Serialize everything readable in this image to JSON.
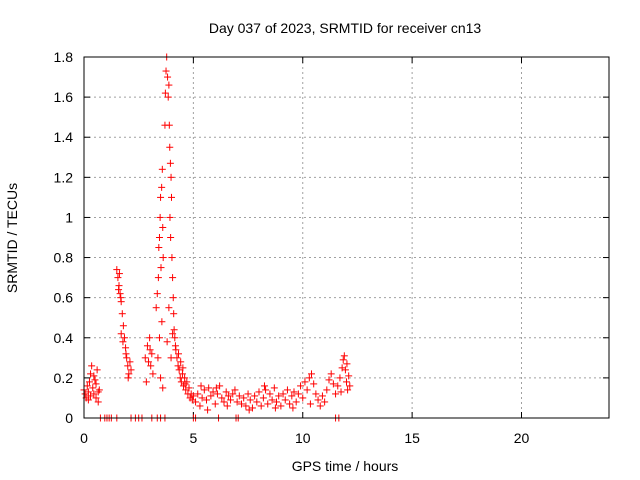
{
  "chart_data": {
    "type": "scatter",
    "title": "Day 037 of 2023, SRMTID for receiver cn13",
    "xlabel": "GPS time / hours",
    "ylabel": "SRMTID / TECUs",
    "xlim": [
      0,
      24
    ],
    "ylim": [
      0,
      1.8
    ],
    "xticks": [
      0,
      5,
      10,
      15,
      20
    ],
    "xtick_labels": [
      "0",
      "5",
      "10",
      "15",
      "20"
    ],
    "yticks": [
      0,
      0.2,
      0.4,
      0.6,
      0.8,
      1.0,
      1.2,
      1.4,
      1.6,
      1.8
    ],
    "ytick_labels": [
      "0",
      "0.2",
      "0.4",
      "0.6",
      "0.8",
      "1",
      "1.2",
      "1.4",
      "1.6",
      "1.8"
    ],
    "grid": true,
    "marker": "+",
    "marker_color": "#ff0000",
    "series": [
      {
        "name": "cn13",
        "points": [
          [
            0.0,
            0.14
          ],
          [
            0.05,
            0.12
          ],
          [
            0.1,
            0.1
          ],
          [
            0.15,
            0.16
          ],
          [
            0.2,
            0.13
          ],
          [
            0.25,
            0.18
          ],
          [
            0.3,
            0.22
          ],
          [
            0.35,
            0.26
          ],
          [
            0.4,
            0.15
          ],
          [
            0.45,
            0.12
          ],
          [
            0.5,
            0.19
          ],
          [
            0.55,
            0.1
          ],
          [
            0.6,
            0.24
          ],
          [
            0.65,
            0.08
          ],
          [
            0.7,
            0.14
          ],
          [
            0.2,
            0.09
          ],
          [
            0.3,
            0.11
          ],
          [
            0.45,
            0.21
          ],
          [
            0.55,
            0.17
          ],
          [
            0.65,
            0.13
          ],
          [
            1.5,
            0.74
          ],
          [
            1.55,
            0.7
          ],
          [
            1.6,
            0.66
          ],
          [
            1.65,
            0.62
          ],
          [
            1.7,
            0.58
          ],
          [
            1.75,
            0.52
          ],
          [
            1.8,
            0.46
          ],
          [
            1.62,
            0.72
          ],
          [
            1.68,
            0.6
          ],
          [
            1.58,
            0.64
          ],
          [
            1.85,
            0.4
          ],
          [
            1.9,
            0.35
          ],
          [
            1.95,
            0.3
          ],
          [
            2.0,
            0.26
          ],
          [
            2.05,
            0.22
          ],
          [
            2.1,
            0.28
          ],
          [
            2.15,
            0.24
          ],
          [
            1.92,
            0.32
          ],
          [
            2.02,
            0.2
          ],
          [
            1.7,
            0.42
          ],
          [
            1.78,
            0.38
          ],
          [
            2.8,
            0.3
          ],
          [
            2.9,
            0.36
          ],
          [
            3.0,
            0.4
          ],
          [
            3.05,
            0.26
          ],
          [
            3.1,
            0.32
          ],
          [
            3.15,
            0.22
          ],
          [
            2.85,
            0.18
          ],
          [
            2.95,
            0.28
          ],
          [
            3.02,
            0.34
          ],
          [
            3.3,
            0.55
          ],
          [
            3.35,
            0.62
          ],
          [
            3.4,
            0.7
          ],
          [
            3.42,
            0.85
          ],
          [
            3.45,
            0.9
          ],
          [
            3.48,
            1.0
          ],
          [
            3.5,
            1.1
          ],
          [
            3.55,
            1.15
          ],
          [
            3.58,
            1.24
          ],
          [
            3.6,
            0.95
          ],
          [
            3.62,
            0.8
          ],
          [
            3.52,
            0.75
          ],
          [
            3.56,
            0.48
          ],
          [
            3.45,
            0.4
          ],
          [
            3.38,
            0.3
          ],
          [
            3.5,
            0.2
          ],
          [
            3.6,
            0.15
          ],
          [
            3.7,
            1.46
          ],
          [
            3.72,
            1.62
          ],
          [
            3.75,
            1.73
          ],
          [
            3.78,
            1.8
          ],
          [
            3.82,
            1.7
          ],
          [
            3.85,
            1.6
          ],
          [
            3.88,
            1.66
          ],
          [
            3.9,
            1.46
          ],
          [
            3.92,
            1.35
          ],
          [
            3.95,
            1.27
          ],
          [
            3.98,
            1.2
          ],
          [
            4.0,
            1.1
          ],
          [
            3.93,
            1.0
          ],
          [
            3.96,
            0.9
          ],
          [
            4.02,
            0.8
          ],
          [
            4.05,
            0.7
          ],
          [
            4.08,
            0.6
          ],
          [
            4.1,
            0.52
          ],
          [
            4.12,
            0.44
          ],
          [
            4.15,
            0.4
          ],
          [
            4.18,
            0.36
          ],
          [
            4.2,
            0.34
          ],
          [
            4.05,
            0.42
          ],
          [
            3.88,
            0.55
          ],
          [
            3.8,
            0.38
          ],
          [
            3.98,
            0.3
          ],
          [
            4.25,
            0.3
          ],
          [
            4.3,
            0.26
          ],
          [
            4.35,
            0.24
          ],
          [
            4.4,
            0.2
          ],
          [
            4.45,
            0.18
          ],
          [
            4.5,
            0.22
          ],
          [
            4.55,
            0.16
          ],
          [
            4.6,
            0.2
          ],
          [
            4.65,
            0.14
          ],
          [
            4.7,
            0.18
          ],
          [
            4.75,
            0.12
          ],
          [
            4.8,
            0.15
          ],
          [
            4.85,
            0.1
          ],
          [
            4.9,
            0.12
          ],
          [
            4.95,
            0.09
          ],
          [
            5.0,
            0.11
          ],
          [
            4.32,
            0.32
          ],
          [
            4.42,
            0.28
          ],
          [
            4.52,
            0.25
          ],
          [
            4.62,
            0.17
          ],
          [
            5.1,
            0.08
          ],
          [
            5.2,
            0.12
          ],
          [
            5.3,
            0.06
          ],
          [
            5.4,
            0.1
          ],
          [
            5.5,
            0.14
          ],
          [
            5.6,
            0.09
          ],
          [
            5.7,
            0.15
          ],
          [
            5.8,
            0.11
          ],
          [
            5.9,
            0.13
          ],
          [
            6.0,
            0.07
          ],
          [
            6.1,
            0.12
          ],
          [
            6.2,
            0.16
          ],
          [
            6.3,
            0.1
          ],
          [
            6.4,
            0.08
          ],
          [
            6.5,
            0.13
          ],
          [
            6.6,
            0.11
          ],
          [
            6.7,
            0.09
          ],
          [
            6.8,
            0.12
          ],
          [
            6.9,
            0.14
          ],
          [
            7.0,
            0.08
          ],
          [
            5.35,
            0.16
          ],
          [
            5.65,
            0.04
          ],
          [
            6.05,
            0.15
          ],
          [
            6.55,
            0.06
          ],
          [
            7.1,
            0.11
          ],
          [
            7.2,
            0.07
          ],
          [
            7.3,
            0.1
          ],
          [
            7.4,
            0.06
          ],
          [
            7.5,
            0.12
          ],
          [
            7.6,
            0.09
          ],
          [
            7.7,
            0.05
          ],
          [
            7.8,
            0.11
          ],
          [
            7.9,
            0.08
          ],
          [
            8.0,
            0.13
          ],
          [
            8.1,
            0.06
          ],
          [
            8.2,
            0.1
          ],
          [
            8.3,
            0.14
          ],
          [
            8.4,
            0.07
          ],
          [
            8.5,
            0.12
          ],
          [
            8.6,
            0.09
          ],
          [
            8.7,
            0.15
          ],
          [
            8.8,
            0.08
          ],
          [
            8.9,
            0.11
          ],
          [
            9.0,
            0.06
          ],
          [
            7.55,
            0.04
          ],
          [
            8.25,
            0.16
          ],
          [
            8.75,
            0.05
          ],
          [
            9.1,
            0.12
          ],
          [
            9.2,
            0.09
          ],
          [
            9.3,
            0.14
          ],
          [
            9.4,
            0.07
          ],
          [
            9.5,
            0.11
          ],
          [
            9.6,
            0.13
          ],
          [
            9.7,
            0.08
          ],
          [
            9.8,
            0.12
          ],
          [
            9.9,
            0.16
          ],
          [
            10.0,
            0.1
          ],
          [
            10.1,
            0.18
          ],
          [
            10.2,
            0.14
          ],
          [
            10.3,
            0.2
          ],
          [
            10.4,
            0.22
          ],
          [
            10.5,
            0.17
          ],
          [
            10.6,
            0.12
          ],
          [
            10.7,
            0.09
          ],
          [
            10.8,
            0.06
          ],
          [
            10.9,
            0.11
          ],
          [
            11.0,
            0.08
          ],
          [
            9.55,
            0.05
          ],
          [
            10.35,
            0.07
          ],
          [
            11.1,
            0.14
          ],
          [
            11.2,
            0.19
          ],
          [
            11.3,
            0.22
          ],
          [
            11.4,
            0.17
          ],
          [
            11.5,
            0.12
          ],
          [
            11.6,
            0.16
          ],
          [
            11.7,
            0.2
          ],
          [
            11.8,
            0.25
          ],
          [
            11.85,
            0.29
          ],
          [
            11.9,
            0.31
          ],
          [
            11.95,
            0.24
          ],
          [
            12.0,
            0.18
          ],
          [
            12.05,
            0.14
          ],
          [
            12.1,
            0.21
          ],
          [
            12.15,
            0.16
          ],
          [
            11.75,
            0.13
          ],
          [
            12.02,
            0.27
          ]
        ],
        "zero_points": [
          0.75,
          0.95,
          1.05,
          1.15,
          1.25,
          1.5,
          2.15,
          2.35,
          2.5,
          2.65,
          3.1,
          3.35,
          3.5,
          3.7,
          5.0,
          5.1,
          6.15,
          6.95,
          7.05,
          11.5,
          11.65
        ]
      }
    ]
  }
}
